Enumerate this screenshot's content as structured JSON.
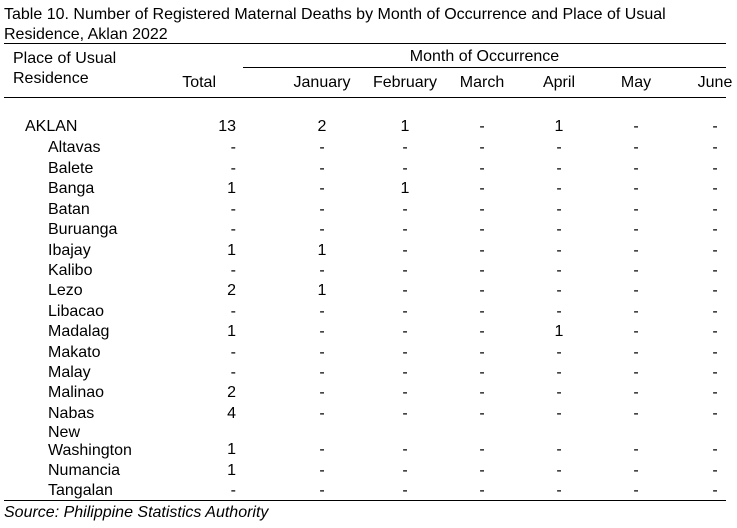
{
  "title": "Table 10. Number of Registered Maternal Deaths by Month of Occurrence and Place of Usual Residence, Aklan 2022",
  "headers": {
    "place": "Place of Usual Residence",
    "total": "Total",
    "month_group": "Month of Occurrence",
    "months": [
      "January",
      "February",
      "March",
      "April",
      "May",
      "June"
    ]
  },
  "rows": [
    {
      "place": "AKLAN",
      "level": 0,
      "values": [
        "13",
        "2",
        "1",
        "-",
        "1",
        "-",
        "-"
      ]
    },
    {
      "place": "Altavas",
      "level": 1,
      "values": [
        "-",
        "-",
        "-",
        "-",
        "-",
        "-",
        "-"
      ]
    },
    {
      "place": "Balete",
      "level": 1,
      "values": [
        "-",
        "-",
        "-",
        "-",
        "-",
        "-",
        "-"
      ]
    },
    {
      "place": "Banga",
      "level": 1,
      "values": [
        "1",
        "-",
        "1",
        "-",
        "-",
        "-",
        "-"
      ]
    },
    {
      "place": "Batan",
      "level": 1,
      "values": [
        "-",
        "-",
        "-",
        "-",
        "-",
        "-",
        "-"
      ]
    },
    {
      "place": "Buruanga",
      "level": 1,
      "values": [
        "-",
        "-",
        "-",
        "-",
        "-",
        "-",
        "-"
      ]
    },
    {
      "place": "Ibajay",
      "level": 1,
      "values": [
        "1",
        "1",
        "-",
        "-",
        "-",
        "-",
        "-"
      ]
    },
    {
      "place": "Kalibo",
      "level": 1,
      "values": [
        "-",
        "-",
        "-",
        "-",
        "-",
        "-",
        "-"
      ]
    },
    {
      "place": "Lezo",
      "level": 1,
      "values": [
        "2",
        "1",
        "-",
        "-",
        "-",
        "-",
        "-"
      ]
    },
    {
      "place": "Libacao",
      "level": 1,
      "values": [
        "-",
        "-",
        "-",
        "-",
        "-",
        "-",
        "-"
      ]
    },
    {
      "place": "Madalag",
      "level": 1,
      "values": [
        "1",
        "-",
        "-",
        "-",
        "1",
        "-",
        "-"
      ]
    },
    {
      "place": "Makato",
      "level": 1,
      "values": [
        "-",
        "-",
        "-",
        "-",
        "-",
        "-",
        "-"
      ]
    },
    {
      "place": "Malay",
      "level": 1,
      "values": [
        "-",
        "-",
        "-",
        "-",
        "-",
        "-",
        "-"
      ]
    },
    {
      "place": "Malinao",
      "level": 1,
      "values": [
        "2",
        "-",
        "-",
        "-",
        "-",
        "-",
        "-"
      ]
    },
    {
      "place": "Nabas",
      "level": 1,
      "values": [
        "4",
        "-",
        "-",
        "-",
        "-",
        "-",
        "-"
      ]
    },
    {
      "place": "New Washington",
      "level": 1,
      "values": [
        "1",
        "-",
        "-",
        "-",
        "-",
        "-",
        "-"
      ]
    },
    {
      "place": "Numancia",
      "level": 1,
      "values": [
        "1",
        "-",
        "-",
        "-",
        "-",
        "-",
        "-"
      ]
    },
    {
      "place": "Tangalan",
      "level": 1,
      "values": [
        "-",
        "-",
        "-",
        "-",
        "-",
        "-",
        "-"
      ]
    }
  ],
  "source": "Source: Philippine Statistics Authority"
}
